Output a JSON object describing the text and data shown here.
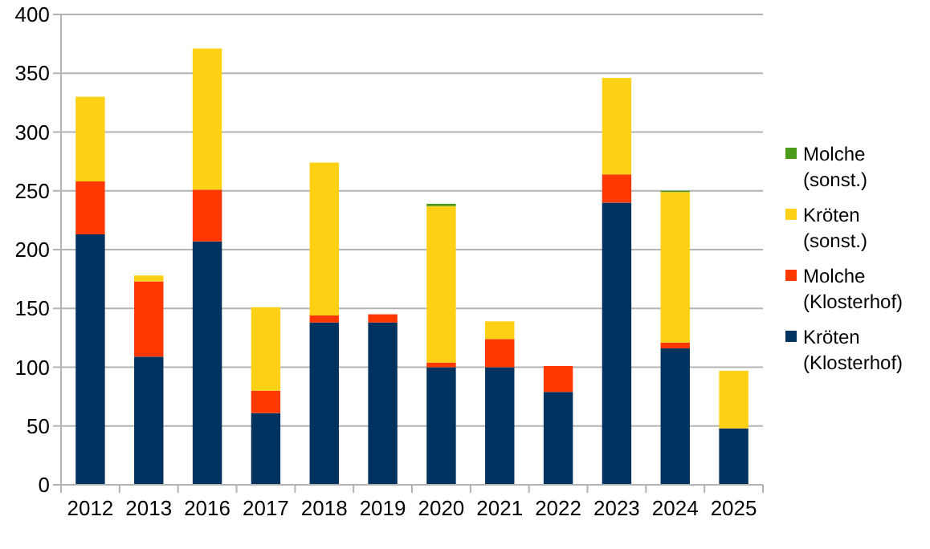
{
  "chart_data": {
    "type": "bar",
    "stacked": true,
    "categories": [
      "2012",
      "2013",
      "2016",
      "2017",
      "2018",
      "2019",
      "2020",
      "2021",
      "2022",
      "2023",
      "2024",
      "2025"
    ],
    "series": [
      {
        "name": "Kröten (Klosterhof)",
        "color": "#003260",
        "values": [
          213,
          109,
          207,
          61,
          138,
          138,
          100,
          100,
          79,
          240,
          116,
          48
        ]
      },
      {
        "name": "Molche (Klosterhof)",
        "color": "#ff3800",
        "values": [
          45,
          64,
          44,
          19,
          6,
          7,
          4,
          24,
          22,
          24,
          5,
          0
        ]
      },
      {
        "name": "Kröten (sonst.)",
        "color": "#ffd014",
        "values": [
          72,
          5,
          120,
          71,
          130,
          0,
          133,
          15,
          0,
          82,
          128,
          49
        ]
      },
      {
        "name": "Molche (sonst.)",
        "color": "#4c9a1a",
        "values": [
          0,
          0,
          0,
          0,
          0,
          0,
          2,
          0,
          0,
          0,
          1,
          0
        ]
      }
    ],
    "ylim": [
      0,
      400
    ],
    "yticks": [
      0,
      50,
      100,
      150,
      200,
      250,
      300,
      350,
      400
    ],
    "grid": "y",
    "legend": "right"
  }
}
